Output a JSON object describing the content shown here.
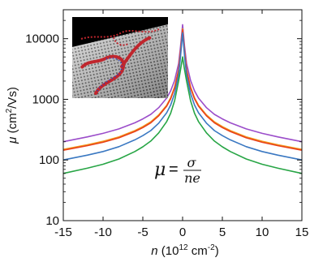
{
  "chart_data": {
    "type": "line",
    "xlabel_var": "n",
    "xlabel_rest": " (10",
    "xlabel_exp": "12",
    "xlabel_unit": " cm",
    "xlabel_unit_exp": "-2",
    "xlabel_close": ")",
    "ylabel_var": "μ",
    "ylabel_rest": " (cm",
    "ylabel_exp": "2",
    "ylabel_close": "/Vs)",
    "x_ticks": [
      "-15",
      "-10",
      "-5",
      "0",
      "5",
      "10",
      "15"
    ],
    "y_ticks": [
      "10",
      "100",
      "1000",
      "10000"
    ],
    "xlim": [
      -15,
      15
    ],
    "ylim": [
      10,
      30000
    ],
    "y_scale": "log",
    "annotation": {
      "lhs": "μ",
      "eq": "=",
      "numerator": "σ",
      "denominator": "ne"
    },
    "inset": "rendered image of a graphene lattice sheet with red and blue impurity charge clusters",
    "x": [
      -15,
      -12,
      -10,
      -8,
      -6,
      -5,
      -4,
      -3,
      -2,
      -1.5,
      -1,
      -0.5,
      -0.25,
      0,
      0.25,
      0.5,
      1,
      1.5,
      2,
      3,
      4,
      5,
      6,
      8,
      10,
      12,
      15
    ],
    "series": [
      {
        "color": "#9b4dca",
        "values": [
          200,
          240,
          275,
          325,
          410,
          475,
          565,
          730,
          1050,
          1380,
          2050,
          3900,
          7500,
          17000,
          7500,
          3900,
          2050,
          1380,
          1050,
          730,
          565,
          475,
          410,
          325,
          275,
          240,
          200
        ]
      },
      {
        "color": "#f39a1b",
        "values": [
          150,
          178,
          203,
          240,
          305,
          355,
          425,
          555,
          800,
          1060,
          1600,
          3100,
          6200,
          14500,
          6200,
          3100,
          1600,
          1060,
          800,
          555,
          425,
          355,
          305,
          240,
          203,
          178,
          150
        ]
      },
      {
        "color": "#e8401c",
        "values": [
          145,
          172,
          196,
          232,
          295,
          342,
          410,
          535,
          770,
          1020,
          1540,
          2980,
          6000,
          14000,
          6000,
          2980,
          1540,
          1020,
          770,
          535,
          410,
          342,
          295,
          232,
          196,
          172,
          145
        ]
      },
      {
        "color": "#3a78c2",
        "values": [
          100,
          120,
          138,
          166,
          215,
          252,
          305,
          405,
          600,
          805,
          1250,
          2500,
          5200,
          12500,
          5200,
          2500,
          1250,
          805,
          600,
          405,
          305,
          252,
          215,
          166,
          138,
          120,
          100
        ]
      },
      {
        "color": "#27a545",
        "values": [
          60,
          73,
          85,
          104,
          138,
          165,
          205,
          280,
          430,
          590,
          950,
          2000,
          3100,
          5000,
          3100,
          2000,
          950,
          590,
          430,
          280,
          205,
          165,
          138,
          104,
          85,
          73,
          60
        ]
      }
    ]
  }
}
